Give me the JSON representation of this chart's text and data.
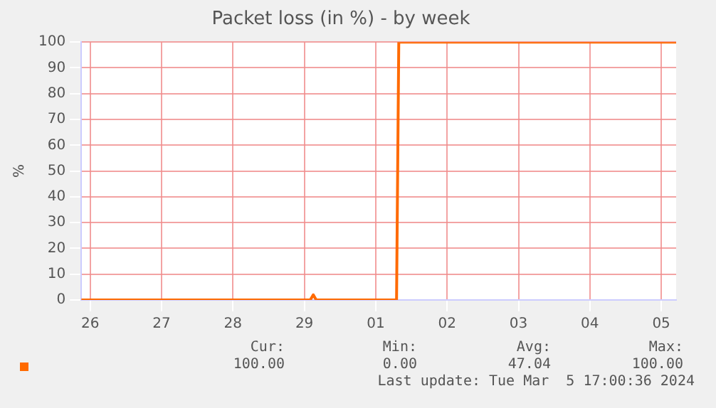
{
  "chart_data": {
    "type": "line",
    "title": "Packet loss (in %) - by week",
    "ylabel": "%",
    "x": [
      "2024-02-26T09:00",
      "2024-02-29T14:00",
      "2024-02-29T15:00",
      "2024-02-29T16:00",
      "2024-03-01T19:00",
      "2024-03-01T19:45",
      "2024-03-05T17:00"
    ],
    "series": [
      {
        "color": "#ff6a00",
        "values": [
          0,
          0,
          2,
          0,
          0,
          100,
          100
        ]
      }
    ],
    "xlim": [
      "2024-02-26T09:00",
      "2024-03-05T17:00"
    ],
    "xticks": [
      {
        "value": "2024-02-26T12:00",
        "label": "26"
      },
      {
        "value": "2024-02-27T12:00",
        "label": "27"
      },
      {
        "value": "2024-02-28T12:00",
        "label": "28"
      },
      {
        "value": "2024-02-29T12:00",
        "label": "29"
      },
      {
        "value": "2024-03-01T12:00",
        "label": "01"
      },
      {
        "value": "2024-03-02T12:00",
        "label": "02"
      },
      {
        "value": "2024-03-03T12:00",
        "label": "03"
      },
      {
        "value": "2024-03-04T12:00",
        "label": "04"
      },
      {
        "value": "2024-03-05T12:00",
        "label": "05"
      }
    ],
    "ylim": [
      0,
      100
    ],
    "yticks": [
      0,
      10,
      20,
      30,
      40,
      50,
      60,
      70,
      80,
      90,
      100
    ],
    "grid": true,
    "legend": false,
    "marker": "none",
    "line_style": "solid",
    "annotations": [
      "Cur:",
      "Min:",
      "Avg:",
      "Max:",
      "100.00",
      "0.00",
      "47.04",
      "100.00",
      "Last update: Tue Mar  5 17:00:36 2024"
    ]
  }
}
